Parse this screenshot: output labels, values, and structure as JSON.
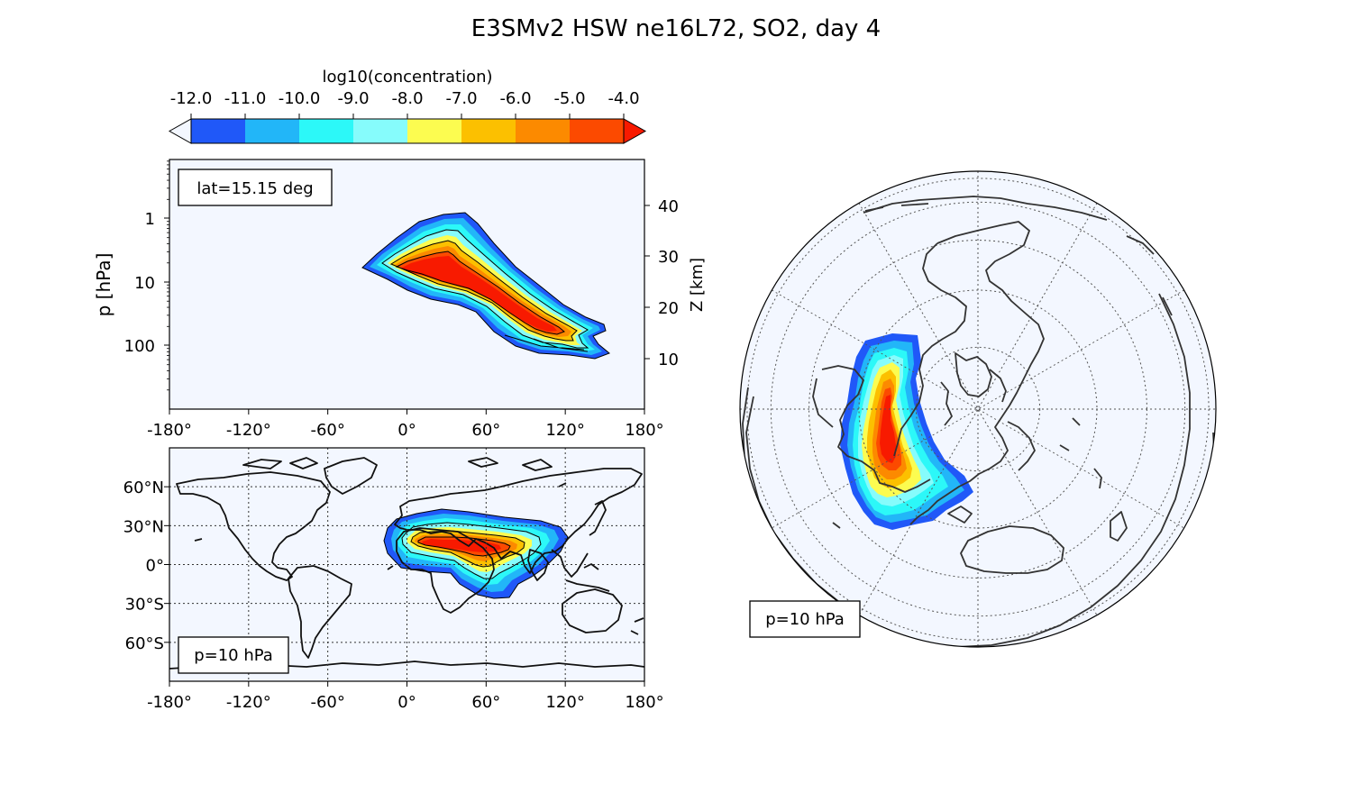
{
  "title": "E3SMv2 HSW ne16L72, SO2, day 4",
  "colors": {
    "background": "#f3f7ff",
    "levels": [
      "#2058f8",
      "#22b6f8",
      "#2cf8f8",
      "#86fcfc",
      "#fcfc50",
      "#fcc000",
      "#fc8a00",
      "#fc4a00",
      "#f81a00"
    ],
    "under": "#f3f7ff",
    "over": "#f81a00",
    "coast": "#111111"
  },
  "chart_data": [
    {
      "type": "colorbar",
      "label": "log10(concentration)",
      "ticks": [
        "-12.0",
        "-11.0",
        "-10.0",
        "-9.0",
        "-8.0",
        "-7.0",
        "-6.0",
        "-5.0",
        "-4.0"
      ],
      "values": [
        -12,
        -11,
        -10,
        -9,
        -8,
        -7,
        -6,
        -5,
        -4
      ],
      "extend": "both"
    },
    {
      "type": "contour",
      "panel": "vertical cross-section",
      "annotation": "lat=15.15 deg",
      "ylabel": "p  [hPa]",
      "ylabel_right": "Z [km]",
      "xticks": [
        "-180°",
        "-120°",
        "-60°",
        "0°",
        "60°",
        "120°",
        "180°"
      ],
      "xlim": [
        -180,
        180
      ],
      "yticks_left": [
        "1",
        "10",
        "100"
      ],
      "ylim_p_hPa": [
        1000,
        0.15
      ],
      "yscale": "log",
      "yticks_right": [
        "10",
        "20",
        "30",
        "40"
      ],
      "plume": {
        "lon_range": [
          -35,
          155
        ],
        "p_range_hPa": [
          1,
          115
        ],
        "max_level": -4.0
      }
    },
    {
      "type": "contour",
      "panel": "map lat-lon",
      "annotation": "p=10 hPa",
      "xticks": [
        "-180°",
        "-120°",
        "-60°",
        "0°",
        "60°",
        "120°",
        "180°"
      ],
      "yticks": [
        "60°N",
        "30°N",
        "0°",
        "30°S",
        "60°S"
      ],
      "xlim": [
        -180,
        180
      ],
      "ylim": [
        -90,
        90
      ],
      "grid": true,
      "plume": {
        "lon_range": [
          -18,
          120
        ],
        "lat_range": [
          -20,
          40
        ],
        "core_lat": 13
      }
    },
    {
      "type": "contour",
      "panel": "orthographic globe",
      "annotation": "p=10 hPa",
      "grid": true
    }
  ]
}
